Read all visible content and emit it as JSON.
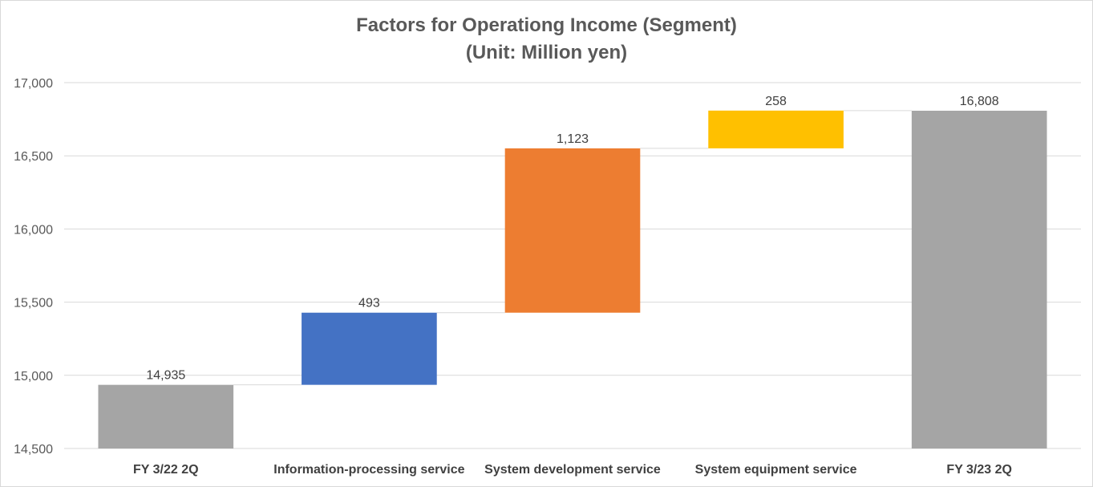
{
  "chart_data": {
    "type": "bar",
    "subtype": "waterfall",
    "title": "Factors for Operationg Income (Segment)",
    "subtitle": "(Unit: Million yen)",
    "categories": [
      "FY 3/22 2Q",
      "Information-processing service",
      "System development service",
      "System equipment service",
      "FY 3/23 2Q"
    ],
    "values": [
      14935,
      493,
      1123,
      258,
      16808
    ],
    "data_labels": [
      "14,935",
      "493",
      "1,123",
      "258",
      "16,808"
    ],
    "kinds": [
      "total",
      "increase",
      "increase",
      "increase",
      "total"
    ],
    "colors": [
      "#a5a5a5",
      "#4472c4",
      "#ed7d31",
      "#ffc000",
      "#a5a5a5"
    ],
    "ylim": [
      14500,
      17000
    ],
    "yticks": [
      14500,
      15000,
      15500,
      16000,
      16500,
      17000
    ],
    "ytick_labels": [
      "14,500",
      "15,000",
      "15,500",
      "16,000",
      "16,500",
      "17,000"
    ],
    "grid": true,
    "connectors": true,
    "xlabel": "",
    "ylabel": ""
  }
}
